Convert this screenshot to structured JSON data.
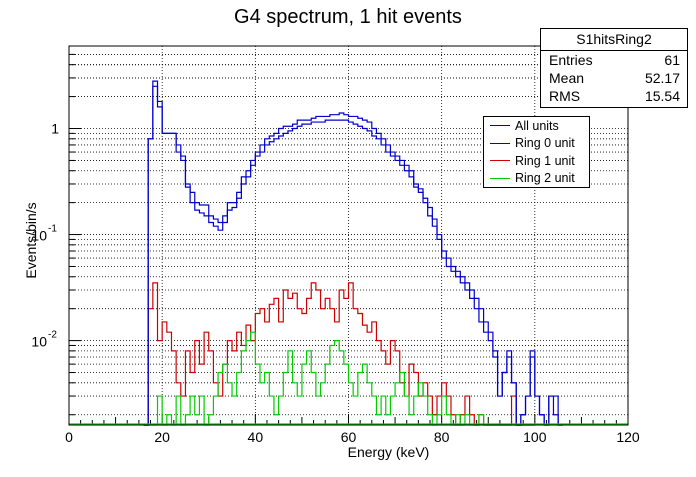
{
  "chart_data": {
    "type": "step-histogram",
    "title": "G4 spectrum, 1 hit events",
    "xlabel": "Energy (keV)",
    "ylabel": "Events/bin/s",
    "xlim": [
      0,
      120
    ],
    "ylim": [
      0.0016,
      6
    ],
    "yscale": "log",
    "grid": true,
    "legend_position": "right",
    "x_ticks": [
      0,
      20,
      40,
      60,
      80,
      100,
      120
    ],
    "y_tick_labels": [
      {
        "value": 1,
        "label": "1"
      },
      {
        "value": 0.1,
        "label": "10^-1"
      },
      {
        "value": 0.01,
        "label": "10^-2"
      }
    ],
    "bin_width": 1,
    "x_start": 16,
    "series": [
      {
        "name": "All units",
        "color": "#0000cc",
        "values": [
          0.0016,
          0.8,
          2.8,
          1.8,
          0.9,
          0.9,
          0.9,
          0.7,
          0.55,
          0.3,
          0.25,
          0.2,
          0.19,
          0.19,
          0.15,
          0.14,
          0.13,
          0.15,
          0.2,
          0.2,
          0.25,
          0.35,
          0.4,
          0.5,
          0.6,
          0.7,
          0.8,
          0.85,
          0.9,
          1.0,
          1.05,
          1.05,
          1.1,
          1.2,
          1.2,
          1.2,
          1.25,
          1.3,
          1.3,
          1.3,
          1.35,
          1.35,
          1.4,
          1.35,
          1.3,
          1.3,
          1.25,
          1.2,
          1.15,
          1.0,
          0.9,
          0.8,
          0.7,
          0.6,
          0.55,
          0.5,
          0.45,
          0.4,
          0.3,
          0.27,
          0.22,
          0.18,
          0.14,
          0.1,
          0.07,
          0.06,
          0.05,
          0.045,
          0.04,
          0.035,
          0.03,
          0.025,
          0.02,
          0.015,
          0.012,
          0.008,
          0.003,
          0.005,
          0.008,
          0.004,
          0.0016,
          0.002,
          0.003,
          0.008,
          0.003,
          0.002,
          0.0016,
          0.003,
          0.003,
          0.0016
        ]
      },
      {
        "name": "Ring 0 unit",
        "color": "#0000cc",
        "values": [
          0.0016,
          0.8,
          2.5,
          1.6,
          0.9,
          0.9,
          0.9,
          0.6,
          0.5,
          0.28,
          0.2,
          0.17,
          0.16,
          0.15,
          0.13,
          0.12,
          0.11,
          0.13,
          0.17,
          0.18,
          0.22,
          0.3,
          0.35,
          0.45,
          0.55,
          0.6,
          0.7,
          0.75,
          0.8,
          0.85,
          0.9,
          0.95,
          1.0,
          1.05,
          1.1,
          1.1,
          1.15,
          1.15,
          1.15,
          1.2,
          1.2,
          1.2,
          1.2,
          1.2,
          1.15,
          1.1,
          1.05,
          1.0,
          0.95,
          0.85,
          0.8,
          0.7,
          0.6,
          0.55,
          0.5,
          0.45,
          0.4,
          0.35,
          0.28,
          0.25,
          0.2,
          0.15,
          0.12,
          0.09,
          0.06,
          0.05,
          0.045,
          0.04,
          0.035,
          0.03,
          0.025,
          0.02,
          0.015,
          0.012,
          0.01,
          0.007,
          0.003,
          0.005,
          0.007,
          0.004,
          0.0016,
          0.002,
          0.003,
          0.007,
          0.003,
          0.002,
          0.0016,
          0.003,
          0.002,
          0.0016
        ]
      },
      {
        "name": "Ring 1 unit",
        "color": "#cc0000",
        "values": [
          0.0016,
          0.02,
          0.035,
          0.01,
          0.015,
          0.012,
          0.008,
          0.004,
          0.003,
          0.008,
          0.005,
          0.01,
          0.006,
          0.012,
          0.008,
          0.004,
          0.003,
          0.006,
          0.01,
          0.008,
          0.012,
          0.009,
          0.014,
          0.01,
          0.018,
          0.02,
          0.015,
          0.022,
          0.025,
          0.015,
          0.03,
          0.025,
          0.028,
          0.02,
          0.018,
          0.025,
          0.035,
          0.03,
          0.02,
          0.025,
          0.02,
          0.015,
          0.03,
          0.025,
          0.035,
          0.02,
          0.018,
          0.014,
          0.012,
          0.015,
          0.01,
          0.008,
          0.006,
          0.01,
          0.008,
          0.004,
          0.003,
          0.006,
          0.005,
          0.003,
          0.004,
          0.003,
          0.002,
          0.003,
          0.004,
          0.003,
          0.002,
          0.0016,
          0.002,
          0.003,
          0.002,
          0.0016,
          0.002,
          0.0016,
          0.0016,
          0.0016,
          0.0016,
          0.0016,
          0.0016,
          0.003,
          0.0016,
          0.0016,
          0.0016,
          0.0016
        ]
      },
      {
        "name": "Ring 2 unit",
        "color": "#00cc00",
        "values": [
          0.0016,
          0.0016,
          0.0016,
          0.003,
          0.0016,
          0.002,
          0.0016,
          0.003,
          0.0016,
          0.002,
          0.003,
          0.002,
          0.003,
          0.0016,
          0.002,
          0.003,
          0.005,
          0.006,
          0.004,
          0.003,
          0.005,
          0.008,
          0.01,
          0.012,
          0.006,
          0.004,
          0.005,
          0.003,
          0.002,
          0.003,
          0.005,
          0.008,
          0.004,
          0.003,
          0.006,
          0.008,
          0.005,
          0.003,
          0.004,
          0.006,
          0.009,
          0.01,
          0.008,
          0.006,
          0.004,
          0.003,
          0.005,
          0.006,
          0.004,
          0.003,
          0.002,
          0.003,
          0.002,
          0.003,
          0.004,
          0.005,
          0.003,
          0.002,
          0.003,
          0.004,
          0.003,
          0.002,
          0.0016,
          0.002,
          0.003,
          0.002,
          0.0016,
          0.002,
          0.0016,
          0.002,
          0.0016,
          0.0016,
          0.002,
          0.0016,
          0.0016,
          0.0016,
          0.0016,
          0.0016,
          0.0016,
          0.0016,
          0.0016,
          0.0016,
          0.0016,
          0.0016
        ]
      }
    ]
  },
  "stats": {
    "name": "S1hitsRing2",
    "rows": [
      {
        "label": "Entries",
        "value": "61"
      },
      {
        "label": "Mean",
        "value": "52.17"
      },
      {
        "label": "RMS",
        "value": "15.54"
      }
    ]
  },
  "legend": [
    {
      "label": "All units",
      "color": "#0000cc"
    },
    {
      "label": "Ring 0 unit",
      "color": "#0000cc"
    },
    {
      "label": "Ring 1 unit",
      "color": "#cc0000"
    },
    {
      "label": "Ring 2 unit",
      "color": "#00cc00"
    }
  ]
}
